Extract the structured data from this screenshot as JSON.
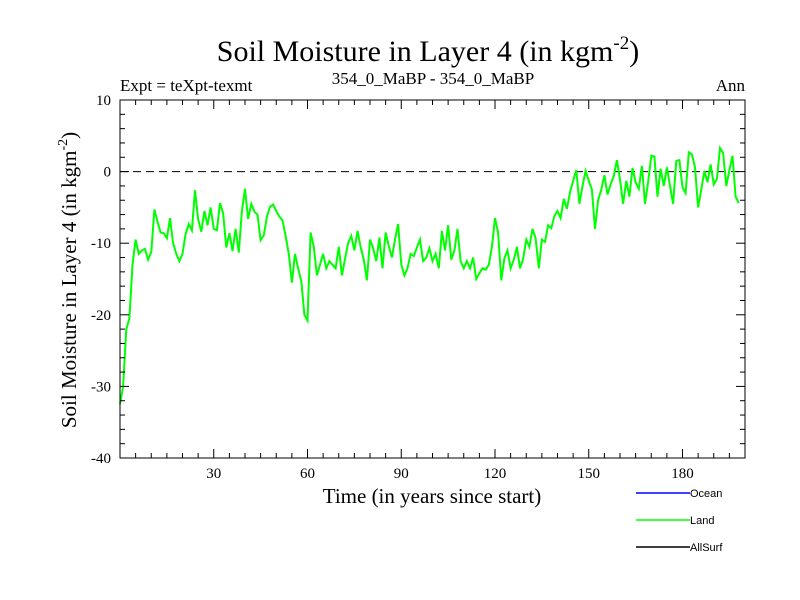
{
  "header": {
    "title_main": "Soil Moisture in Layer 4 (in kgm",
    "title_sup": "-2",
    "title_end": ")",
    "left_note": "Expt = teXpt-texmt",
    "center_note": "354_0_MaBP - 354_0_MaBP",
    "right_note": "Ann"
  },
  "chart_data": {
    "type": "line",
    "xlabel": "Time (in years since start)",
    "ylabel_main": "Soil Moisture in Layer 4 (in kgm",
    "ylabel_sup": "-2",
    "ylabel_end": ")",
    "xlim": [
      0,
      200
    ],
    "ylim": [
      -40,
      10
    ],
    "x_ticks": [
      30,
      60,
      90,
      120,
      150,
      180
    ],
    "y_ticks": [
      -40,
      -30,
      -20,
      -10,
      0,
      10
    ],
    "reference_line": 0,
    "grid": false,
    "legend_position": "bottom-right",
    "legend": [
      {
        "name": "Ocean",
        "color": "#0000ff"
      },
      {
        "name": "Land",
        "color": "#00ff00"
      },
      {
        "name": "AllSurf",
        "color": "#000000"
      }
    ],
    "series": [
      {
        "name": "Land",
        "color": "#00ff00",
        "x_start": 0,
        "x_step": 1,
        "values": [
          -32.5,
          -30,
          -22,
          -20.5,
          -13,
          -9.5,
          -11.5,
          -11,
          -10.8,
          -12.3,
          -11.2,
          -5.3,
          -7,
          -8.5,
          -8.6,
          -9.3,
          -6.5,
          -10,
          -11.5,
          -12.5,
          -11.5,
          -8.7,
          -7.3,
          -8.2,
          -2.6,
          -6.6,
          -8.4,
          -5.5,
          -7.5,
          -5,
          -8,
          -8.2,
          -4.4,
          -5.8,
          -10.6,
          -8.6,
          -11.1,
          -8,
          -11.3,
          -5.5,
          -2.4,
          -6.6,
          -4.5,
          -5.6,
          -6,
          -9.6,
          -8.9,
          -6.3,
          -4.9,
          -4.6,
          -5.5,
          -6.3,
          -6.8,
          -9,
          -11.5,
          -15.5,
          -11.5,
          -13.5,
          -15.3,
          -20,
          -20.8,
          -8.5,
          -10.5,
          -14.5,
          -13,
          -11.5,
          -13.5,
          -12.5,
          -13,
          -13.5,
          -10.5,
          -14.5,
          -12.2,
          -10,
          -9,
          -11,
          -8.3,
          -10.5,
          -12.3,
          -15.2,
          -9.5,
          -10.7,
          -12.5,
          -9.2,
          -13.5,
          -8.5,
          -10.4,
          -12,
          -9.5,
          -7.3,
          -13,
          -14.5,
          -13.5,
          -11.5,
          -11.8,
          -10.6,
          -9.5,
          -12.5,
          -12,
          -10.7,
          -12.5,
          -11.5,
          -13.5,
          -8.3,
          -11,
          -7.5,
          -12.3,
          -11,
          -8,
          -12.5,
          -13.5,
          -12.5,
          -13.5,
          -12,
          -15,
          -14.2,
          -13.5,
          -13.7,
          -13,
          -10.5,
          -6.5,
          -8.5,
          -15.2,
          -12.1,
          -11,
          -13.5,
          -12.3,
          -10.5,
          -13.5,
          -12.2,
          -9.5,
          -10.5,
          -8,
          -9.3,
          -13.5,
          -9.5,
          -9.8,
          -7.5,
          -7.9,
          -6.2,
          -5.5,
          -6.5,
          -3.8,
          -5.2,
          -2.9,
          -1.3,
          0.2,
          -4.5,
          -2,
          0.1,
          -1.3,
          -2.5,
          -8,
          -4,
          -2.5,
          -0.5,
          -3.2,
          -1.8,
          -0.6,
          1.6,
          -1.1,
          -4.5,
          -1.3,
          -3.5,
          0.5,
          -1.5,
          -2.4,
          0.8,
          -4.5,
          -1.5,
          2.2,
          2.1,
          -3.5,
          0.4,
          -2,
          0.6,
          -2,
          -4.5,
          1.5,
          1.6,
          -2.2,
          -3,
          2.7,
          2.4,
          0.6,
          -5,
          -2.5,
          0.1,
          -1.5,
          1,
          -1.8,
          -1,
          3.3,
          2.6,
          -2,
          0.2,
          2.2,
          -3.5,
          -4.4
        ]
      }
    ]
  }
}
